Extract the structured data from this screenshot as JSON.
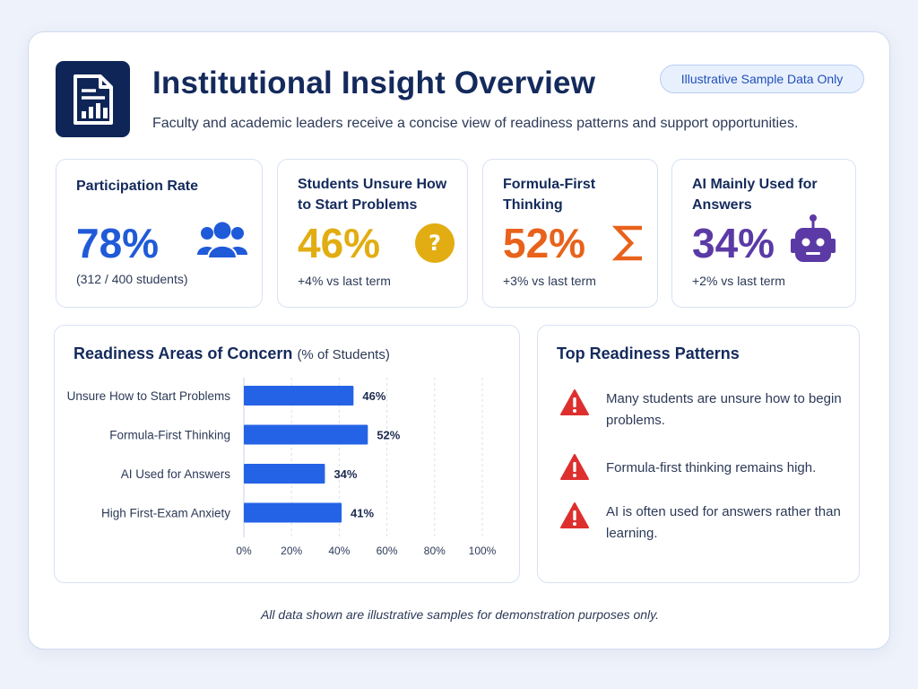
{
  "header": {
    "title": "Institutional Insight Overview",
    "subtitle": "Faculty and academic leaders receive a concise view of readiness patterns and support opportunities.",
    "badge": "Illustrative Sample Data Only"
  },
  "metrics": [
    {
      "label": "Participation Rate",
      "value": "78%",
      "note": "(312 / 400 students)",
      "color": "#1f5ad8",
      "icon": "users-icon"
    },
    {
      "label": "Students Unsure How to Start Problems",
      "value": "46%",
      "note": "+4% vs last term",
      "color": "#e2ad12",
      "icon": "question-icon"
    },
    {
      "label": "Formula-First Thinking",
      "value": "52%",
      "note": "+3% vs last term",
      "color": "#e8621c",
      "icon": "sigma-icon"
    },
    {
      "label": "AI Mainly Used for Answers",
      "value": "34%",
      "note": "+2% vs last term",
      "color": "#5b3aa6",
      "icon": "robot-icon"
    }
  ],
  "concern_panel": {
    "title": "Readiness Areas of Concern",
    "title_suffix": "(% of Students)"
  },
  "chart_data": {
    "type": "bar",
    "orientation": "horizontal",
    "categories": [
      "Unsure How to Start Problems",
      "Formula-First Thinking",
      "AI Used for Answers",
      "High First-Exam Anxiety"
    ],
    "values": [
      46,
      52,
      34,
      41
    ],
    "data_labels": [
      "46%",
      "52%",
      "34%",
      "41%"
    ],
    "x_ticks": [
      "0%",
      "20%",
      "40%",
      "60%",
      "80%",
      "100%"
    ],
    "xlim": [
      0,
      100
    ],
    "bar_color": "#2563e6",
    "grid": true
  },
  "patterns_panel": {
    "title": "Top Readiness Patterns",
    "items": [
      "Many students are unsure how to begin problems.",
      "Formula-first thinking remains high.",
      "AI is often used for answers rather than learning."
    ],
    "warning_color": "#de2f2f"
  },
  "footer": "All data shown are illustrative samples for demonstration purposes only."
}
